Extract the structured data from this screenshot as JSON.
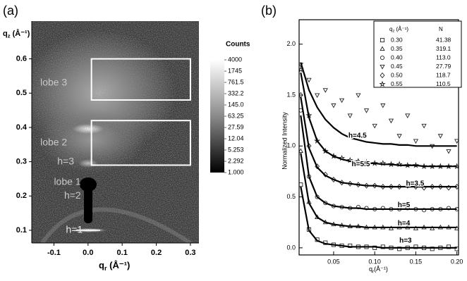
{
  "chart_data": [
    {
      "type": "heatmap",
      "panel_label": "(a)",
      "xlabel": {
        "symbol": "q",
        "subscript": "r",
        "unit": " (Å⁻¹)"
      },
      "ylabel": {
        "symbol": "q",
        "subscript": "z",
        "unit": " (Å⁻¹)"
      },
      "xlim": [
        -0.165,
        0.325
      ],
      "ylim": [
        0.063,
        0.71
      ],
      "xticks": [
        -0.1,
        {
          "value": 0,
          "label": "0.0"
        },
        0.1,
        0.2,
        0.3
      ],
      "yticks": [
        0.1,
        0.2,
        0.3,
        0.4,
        0.5,
        0.6
      ],
      "colorbar": {
        "title": "Counts",
        "scale": "log",
        "lim": [
          1,
          4000
        ],
        "ticks": [
          4000,
          1745,
          761.5,
          332.2,
          {
            "value": 145,
            "label": "145.0"
          },
          63.25,
          27.59,
          12.04,
          5.253,
          2.292,
          {
            "value": 1,
            "label": "1.000"
          }
        ]
      },
      "boxes": [
        {
          "x": [
            0.01,
            0.3
          ],
          "y": [
            0.48,
            0.6
          ]
        },
        {
          "x": [
            0.01,
            0.3
          ],
          "y": [
            0.29,
            0.42
          ]
        }
      ],
      "annotations": [
        {
          "text": "lobe 3",
          "x": -0.14,
          "y": 0.53,
          "color": "#c8c8c8"
        },
        {
          "text": "lobe 2",
          "x": -0.14,
          "y": 0.355,
          "color": "#c8c8c8"
        },
        {
          "text": "h=3",
          "x": -0.09,
          "y": 0.3,
          "color": "#c8c8c8"
        },
        {
          "text": "lobe 1",
          "x": -0.1,
          "y": 0.24,
          "color": "#c8c8c8"
        },
        {
          "text": "h=2",
          "x": -0.07,
          "y": 0.2,
          "color": "#c8c8c8"
        },
        {
          "text": "h=1",
          "x": -0.065,
          "y": 0.1,
          "color": "#e8e8e8"
        }
      ]
    },
    {
      "type": "scatter",
      "panel_label": "(b)",
      "xlabel": {
        "symbol": "q",
        "subscript": "r",
        "unit": "(Å⁻¹)"
      },
      "ylabel": "Normalized Intensity",
      "xlim": [
        0.008,
        0.202
      ],
      "ylim": [
        -0.07,
        2.24
      ],
      "xticks": [
        0.05,
        {
          "value": 0.1,
          "label": "0.10"
        },
        0.15,
        {
          "value": 0.2,
          "label": "0.20"
        }
      ],
      "yticks": [
        {
          "value": 0,
          "label": "0.0"
        },
        0.5,
        {
          "value": 1,
          "label": "1.0"
        },
        1.5,
        {
          "value": 2,
          "label": "2.0"
        }
      ],
      "legend": {
        "header": {
          "symbol": "q",
          "subscript": "z",
          "unit": " (Å⁻¹)"
        },
        "column": "N",
        "position": "upper right"
      },
      "x": [
        0.01,
        0.02,
        0.03,
        0.04,
        0.05,
        0.06,
        0.07,
        0.08,
        0.09,
        0.1,
        0.11,
        0.12,
        0.13,
        0.14,
        0.15,
        0.16,
        0.17,
        0.18,
        0.19,
        0.2
      ],
      "series": [
        {
          "name": "0.30",
          "N": "41.38",
          "marker": "square",
          "color": "#222222",
          "values": [
            0.62,
            0.18,
            0.08,
            0.05,
            0.03,
            0.02,
            0.02,
            0.01,
            0.01,
            0.0,
            0.01,
            0.0,
            -0.01,
            0.0,
            0.01,
            0.0,
            -0.01,
            0.0,
            0.01,
            -0.01
          ],
          "fit": [
            0.6,
            0.17,
            0.07,
            0.04,
            0.03,
            0.02,
            0.01,
            0.01,
            0.01,
            0.01,
            0.0,
            0.0,
            0.0,
            0.0,
            0.0,
            0.0,
            0.0,
            0.0,
            0.0,
            0.0
          ]
        },
        {
          "name": "0.35",
          "N": "319.1",
          "marker": "triangle-up",
          "color": "#222222",
          "values": [
            0.95,
            0.45,
            0.3,
            0.25,
            0.23,
            0.22,
            0.21,
            0.21,
            0.2,
            0.2,
            0.2,
            0.19,
            0.2,
            0.2,
            0.19,
            0.2,
            0.19,
            0.2,
            0.2,
            0.19
          ],
          "fit": [
            0.93,
            0.44,
            0.3,
            0.25,
            0.23,
            0.22,
            0.21,
            0.21,
            0.2,
            0.2,
            0.2,
            0.2,
            0.2,
            0.2,
            0.2,
            0.2,
            0.2,
            0.2,
            0.2,
            0.2
          ]
        },
        {
          "name": "0.40",
          "N": "113.0",
          "marker": "circle",
          "color": "#222222",
          "values": [
            1.35,
            0.7,
            0.5,
            0.44,
            0.41,
            0.4,
            0.39,
            0.4,
            0.39,
            0.38,
            0.39,
            0.38,
            0.38,
            0.39,
            0.38,
            0.37,
            0.38,
            0.38,
            0.39,
            0.38
          ],
          "fit": [
            1.3,
            0.7,
            0.5,
            0.44,
            0.41,
            0.4,
            0.39,
            0.39,
            0.38,
            0.38,
            0.38,
            0.38,
            0.38,
            0.38,
            0.38,
            0.38,
            0.38,
            0.38,
            0.38,
            0.38
          ]
        },
        {
          "name": "0.45",
          "N": "27.79",
          "marker": "triangle-down",
          "color": "#222222",
          "values": [
            1.8,
            1.65,
            1.5,
            1.55,
            1.4,
            1.45,
            1.3,
            1.5,
            1.35,
            1.2,
            1.4,
            1.25,
            1.1,
            1.3,
            1.05,
            1.2,
            1.0,
            1.1,
            0.95,
            1.05
          ],
          "fit": [
            1.82,
            1.55,
            1.38,
            1.26,
            1.18,
            1.12,
            1.08,
            1.06,
            1.04,
            1.03,
            1.02,
            1.02,
            1.01,
            1.01,
            1.0,
            1.0,
            1.0,
            1.0,
            1.0,
            1.0
          ]
        },
        {
          "name": "0.50",
          "N": "118.7",
          "marker": "diamond",
          "color": "#222222",
          "values": [
            1.5,
            1.0,
            0.8,
            0.72,
            0.67,
            0.64,
            0.63,
            0.62,
            0.61,
            0.61,
            0.6,
            0.6,
            0.6,
            0.61,
            0.6,
            0.59,
            0.6,
            0.6,
            0.59,
            0.6
          ],
          "fit": [
            1.48,
            0.98,
            0.79,
            0.71,
            0.67,
            0.64,
            0.63,
            0.62,
            0.61,
            0.61,
            0.6,
            0.6,
            0.6,
            0.6,
            0.6,
            0.6,
            0.6,
            0.6,
            0.6,
            0.6
          ]
        },
        {
          "name": "0.55",
          "N": "110.5",
          "marker": "star",
          "color": "#222222",
          "values": [
            1.75,
            1.3,
            1.05,
            0.95,
            0.9,
            0.88,
            0.86,
            0.85,
            0.84,
            0.83,
            0.83,
            0.82,
            0.82,
            0.81,
            0.81,
            0.8,
            0.8,
            0.8,
            0.8,
            0.8
          ],
          "fit": [
            1.72,
            1.28,
            1.05,
            0.95,
            0.9,
            0.87,
            0.85,
            0.84,
            0.83,
            0.83,
            0.82,
            0.82,
            0.81,
            0.81,
            0.81,
            0.8,
            0.8,
            0.8,
            0.8,
            0.8
          ]
        }
      ],
      "annotations": [
        {
          "text": "h=4.5",
          "x": 0.068,
          "y": 1.1
        },
        {
          "text": "h=5.5",
          "x": 0.072,
          "y": 0.82
        },
        {
          "text": "h=3.5",
          "x": 0.138,
          "y": 0.63
        },
        {
          "text": "h=5",
          "x": 0.128,
          "y": 0.42
        },
        {
          "text": "h=4",
          "x": 0.128,
          "y": 0.24
        },
        {
          "text": "h=3",
          "x": 0.13,
          "y": 0.07
        }
      ]
    }
  ]
}
